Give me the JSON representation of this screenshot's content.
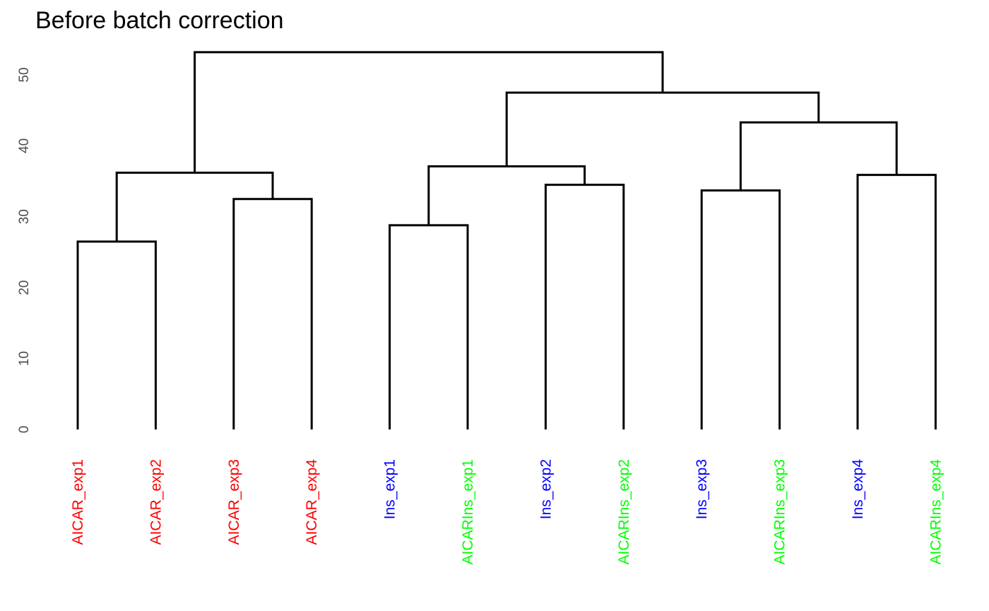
{
  "chart_data": {
    "type": "dendrogram",
    "title": "Before batch correction",
    "xlabel": "",
    "ylabel": "",
    "ylim": [
      0,
      55
    ],
    "grid": false,
    "yticks": [
      "0",
      "10",
      "20",
      "30",
      "40",
      "50"
    ],
    "group_colors": {
      "AICAR": "#ff0000",
      "Ins": "#0000ff",
      "AICARIns": "#00ff00"
    },
    "leaves": [
      {
        "label": "AICAR_exp1",
        "group": "AICAR"
      },
      {
        "label": "AICAR_exp2",
        "group": "AICAR"
      },
      {
        "label": "AICAR_exp3",
        "group": "AICAR"
      },
      {
        "label": "AICAR_exp4",
        "group": "AICAR"
      },
      {
        "label": "Ins_exp1",
        "group": "Ins"
      },
      {
        "label": "AICARIns_exp1",
        "group": "AICARIns"
      },
      {
        "label": "Ins_exp2",
        "group": "Ins"
      },
      {
        "label": "AICARIns_exp2",
        "group": "AICARIns"
      },
      {
        "label": "Ins_exp3",
        "group": "Ins"
      },
      {
        "label": "AICARIns_exp3",
        "group": "AICARIns"
      },
      {
        "label": "Ins_exp4",
        "group": "Ins"
      },
      {
        "label": "AICARIns_exp4",
        "group": "AICARIns"
      }
    ],
    "merges": [
      {
        "left": "L0",
        "right": "L1",
        "height": 26.5
      },
      {
        "left": "L2",
        "right": "L3",
        "height": 32.5
      },
      {
        "left": "M0",
        "right": "M1",
        "height": 36.2
      },
      {
        "left": "L4",
        "right": "L5",
        "height": 28.8
      },
      {
        "left": "L6",
        "right": "L7",
        "height": 34.5
      },
      {
        "left": "M3",
        "right": "M4",
        "height": 37.1
      },
      {
        "left": "L8",
        "right": "L9",
        "height": 33.7
      },
      {
        "left": "L10",
        "right": "L11",
        "height": 35.9
      },
      {
        "left": "M6",
        "right": "M7",
        "height": 43.3
      },
      {
        "left": "M5",
        "right": "M8",
        "height": 47.5
      },
      {
        "left": "M2",
        "right": "M9",
        "height": 53.2
      }
    ]
  }
}
